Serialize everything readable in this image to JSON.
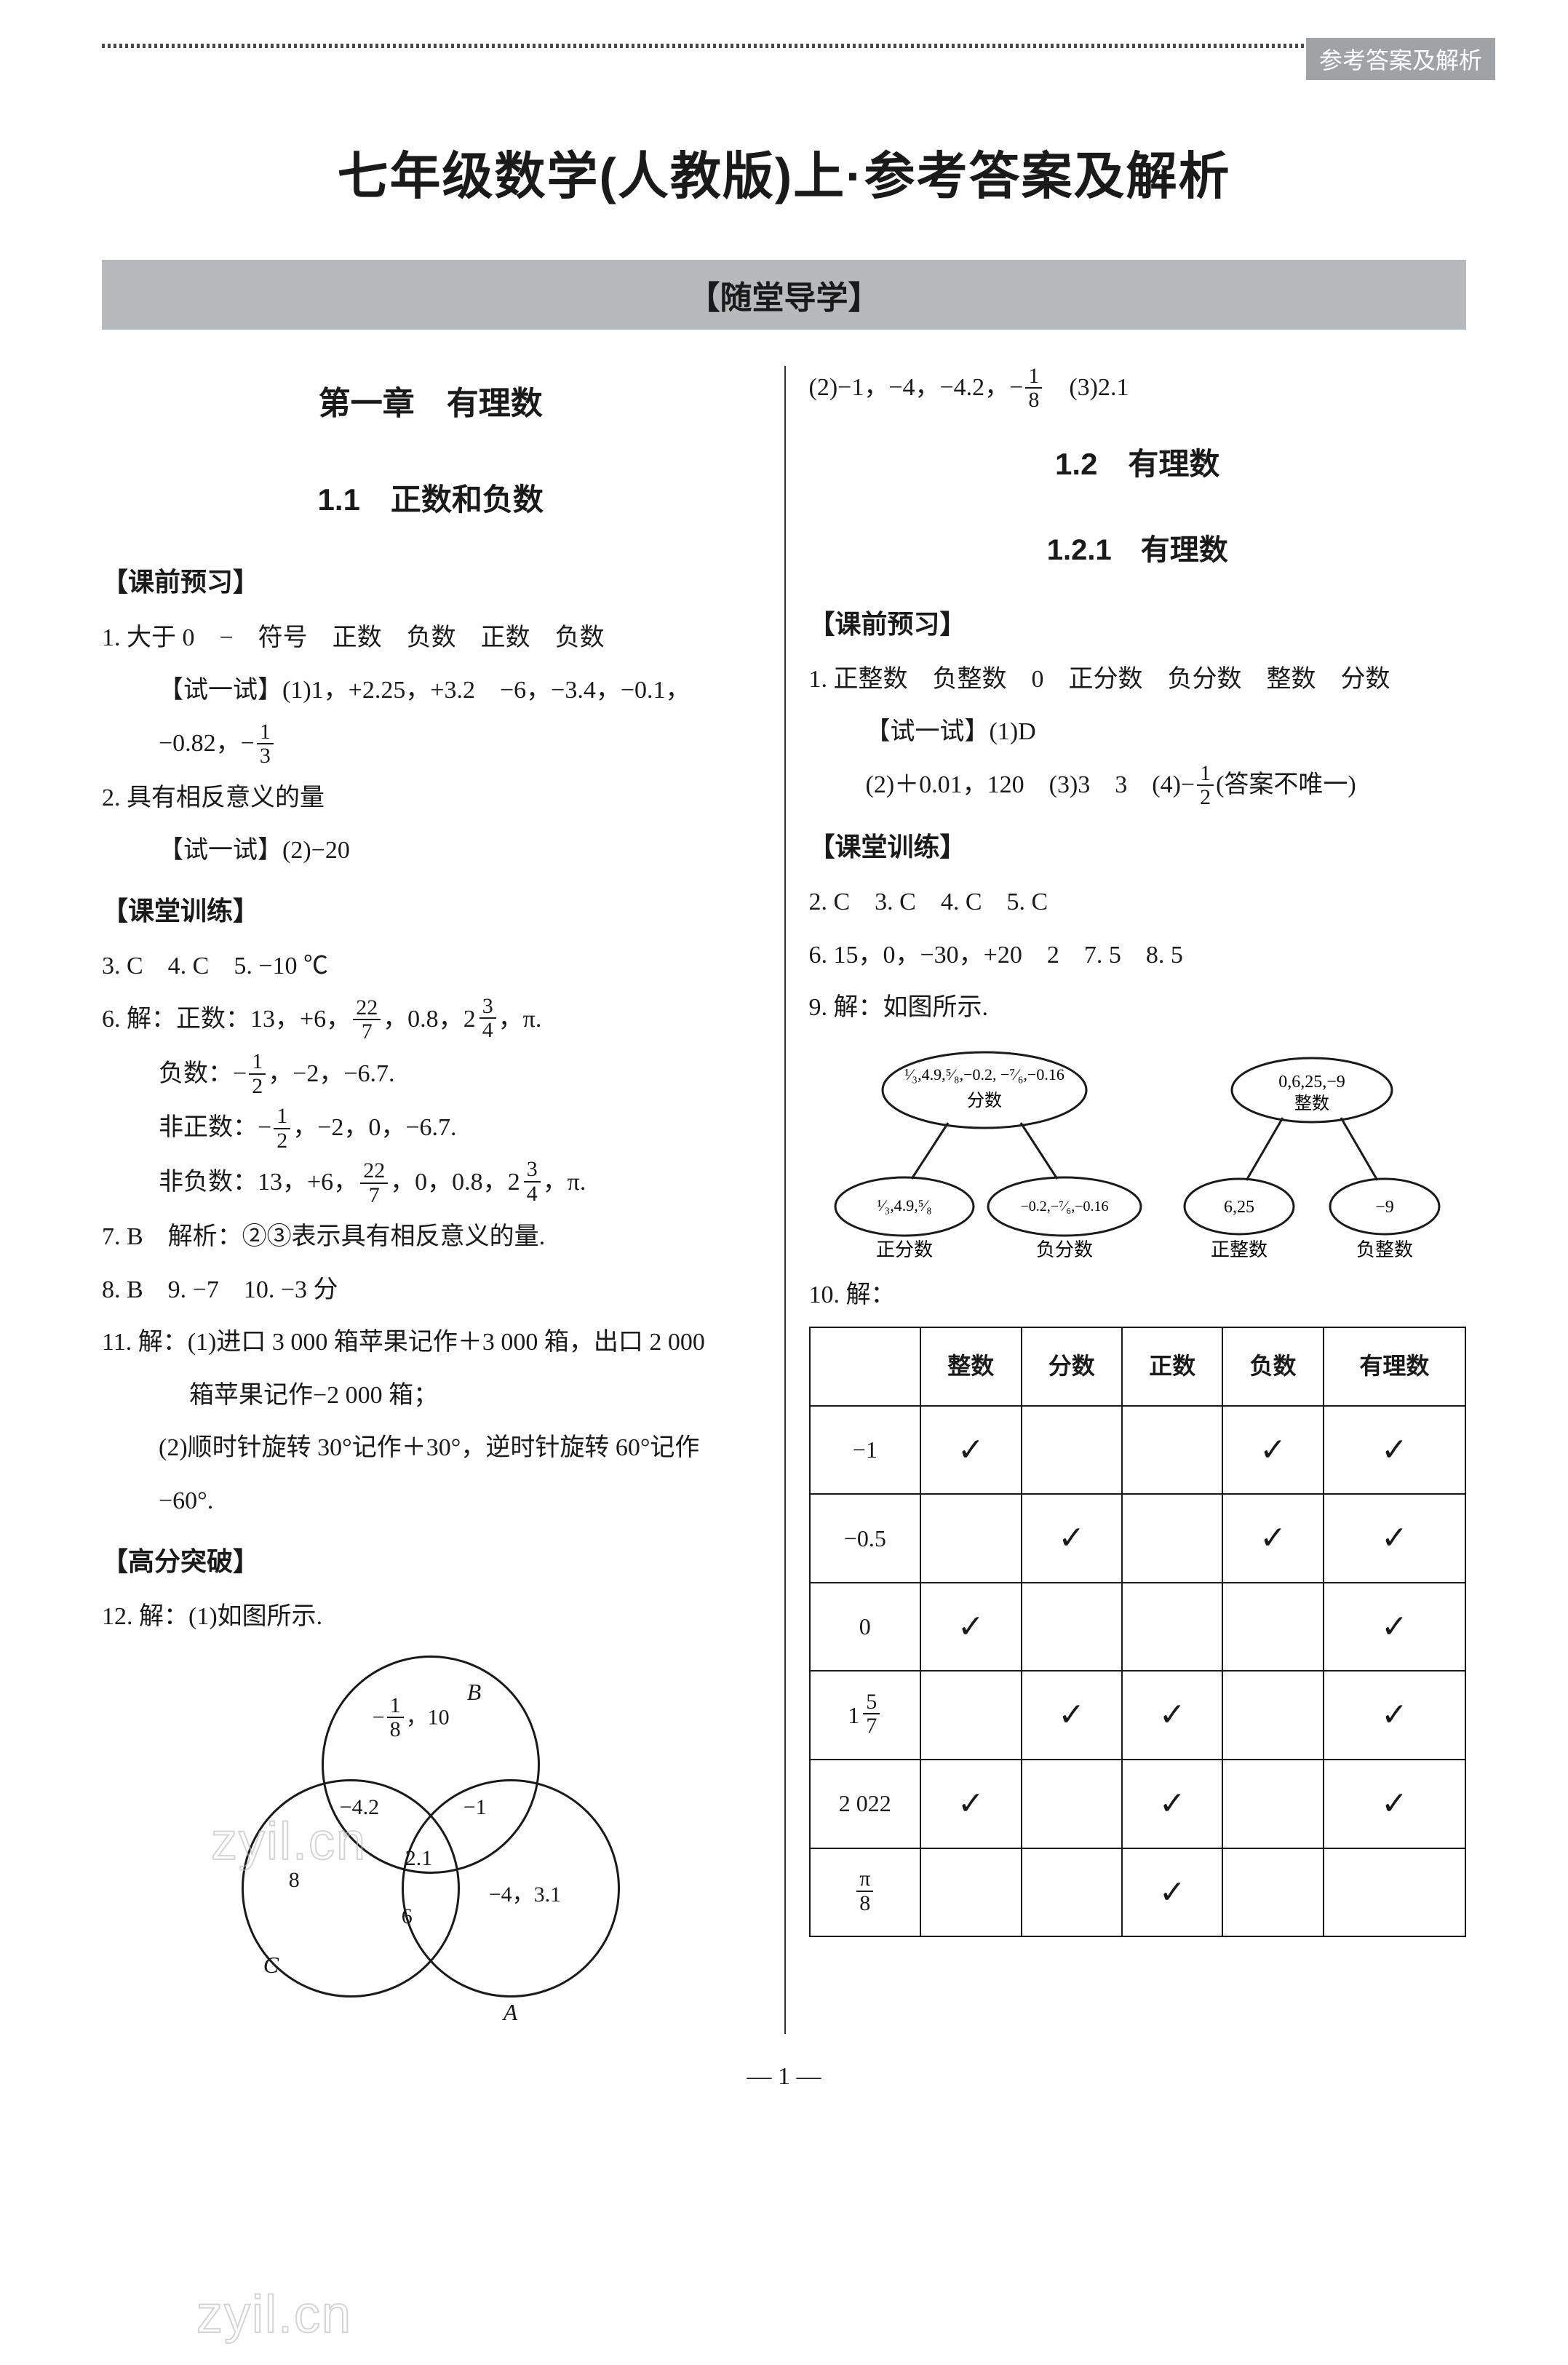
{
  "header_tag": "参考答案及解析",
  "main_title": "七年级数学(人教版)上·参考答案及解析",
  "section_bar": "【随堂导学】",
  "page_number": "— 1 —",
  "watermark_text": "zyil.cn",
  "left": {
    "chapter": "第一章　有理数",
    "sec11_title": "1.1　正数和负数",
    "preview_label": "【课前预习】",
    "p1_line1": "1. 大于 0　−　符号　正数　负数　正数　负数",
    "try_label1": "【试一试】",
    "p1_try_a": "(1)1，+2.25，+3.2　−6，−3.4，−0.1，",
    "p1_try_b_prefix": "−0.82，−",
    "p2": "2. 具有相反意义的量",
    "p2_try": "【试一试】(2)−20",
    "train_label": "【课堂训练】",
    "p3": "3. C　4. C　5. −10 ℃",
    "p6_lead": "6. 解：正数：13，+6，",
    "p6_lead_tail": "，0.8，",
    "p6_lead_tail2": "，π.",
    "p6_neg_lead": "负数：−",
    "p6_neg_tail": "，−2，−6.7.",
    "p6_nonpos_lead": "非正数：−",
    "p6_nonpos_tail": "，−2，0，−6.7.",
    "p6_nonneg_lead": "非负数：13，+6，",
    "p6_nonneg_mid": "，0，0.8，",
    "p6_nonneg_tail": "，π.",
    "p7": "7. B　解析：②③表示具有相反意义的量.",
    "p8": "8. B　9. −7　10. −3 分",
    "p11a": "11. 解：(1)进口 3 000 箱苹果记作＋3 000 箱，出口 2 000",
    "p11a2": "箱苹果记作−2 000 箱；",
    "p11b": "(2)顺时针旋转 30°记作＋30°，逆时针旋转 60°记作",
    "p11b2": "−60°.",
    "break_label": "【高分突破】",
    "p12": "12. 解：(1)如图所示.",
    "venn": {
      "B": "B",
      "C": "C",
      "A": "A",
      "t1": "−​¹⁄₈，10",
      "t2": "−4.2",
      "t3": "−1",
      "t4": "8",
      "t5": "2.1",
      "t6": "−4，3.1",
      "t7": "6"
    }
  },
  "right": {
    "r_line1a": "(2)−1，−4，−4.2，−",
    "r_line1b": "　(3)2.1",
    "sec12_title": "1.2　有理数",
    "sec121_title": "1.2.1　有理数",
    "preview_label": "【课前预习】",
    "r_p1": "1. 正整数　负整数　0　正分数　负分数　整数　分数",
    "r_try1": "【试一试】(1)D",
    "r_try2a": "(2)＋0.01，120　(3)3　3　(4)−",
    "r_try2b": "(答案不唯一)",
    "train_label": "【课堂训练】",
    "r_p2": "2. C　3. C　4. C　5. C",
    "r_p6": "6. 15，0，−30，+20　2　7. 5　8. 5",
    "r_p9": "9. 解：如图所示.",
    "tree1": {
      "top": "¹⁄₃,4.9,⁵⁄₈,−0.2, −⁷⁄₆,−0.16",
      "top_label": "分数",
      "left": "¹⁄₃,4.9,⁵⁄₈",
      "left_label": "正分数",
      "right": "−0.2,−⁷⁄₆,−0.16",
      "right_label": "负分数"
    },
    "tree2": {
      "top": "0,6,25,−9",
      "top_label": "整数",
      "left": "6,25",
      "left_label": "正整数",
      "right": "−9",
      "right_label": "负整数"
    },
    "r_p10": "10. 解：",
    "table": {
      "headers": [
        "",
        "整数",
        "分数",
        "正数",
        "负数",
        "有理数"
      ],
      "rows": [
        {
          "label": "−1",
          "cells": [
            "✓",
            "",
            "",
            "✓",
            "✓"
          ]
        },
        {
          "label": "−0.5",
          "cells": [
            "",
            "✓",
            "",
            "✓",
            "✓"
          ]
        },
        {
          "label": "0",
          "cells": [
            "✓",
            "",
            "",
            "",
            "✓"
          ]
        },
        {
          "label": "MIXED_1_5_7",
          "cells": [
            "",
            "✓",
            "✓",
            "",
            "✓"
          ]
        },
        {
          "label": "2 022",
          "cells": [
            "✓",
            "",
            "✓",
            "",
            "✓"
          ]
        },
        {
          "label": "PI_OVER_8",
          "cells": [
            "",
            "",
            "✓",
            "",
            ""
          ]
        }
      ]
    }
  }
}
